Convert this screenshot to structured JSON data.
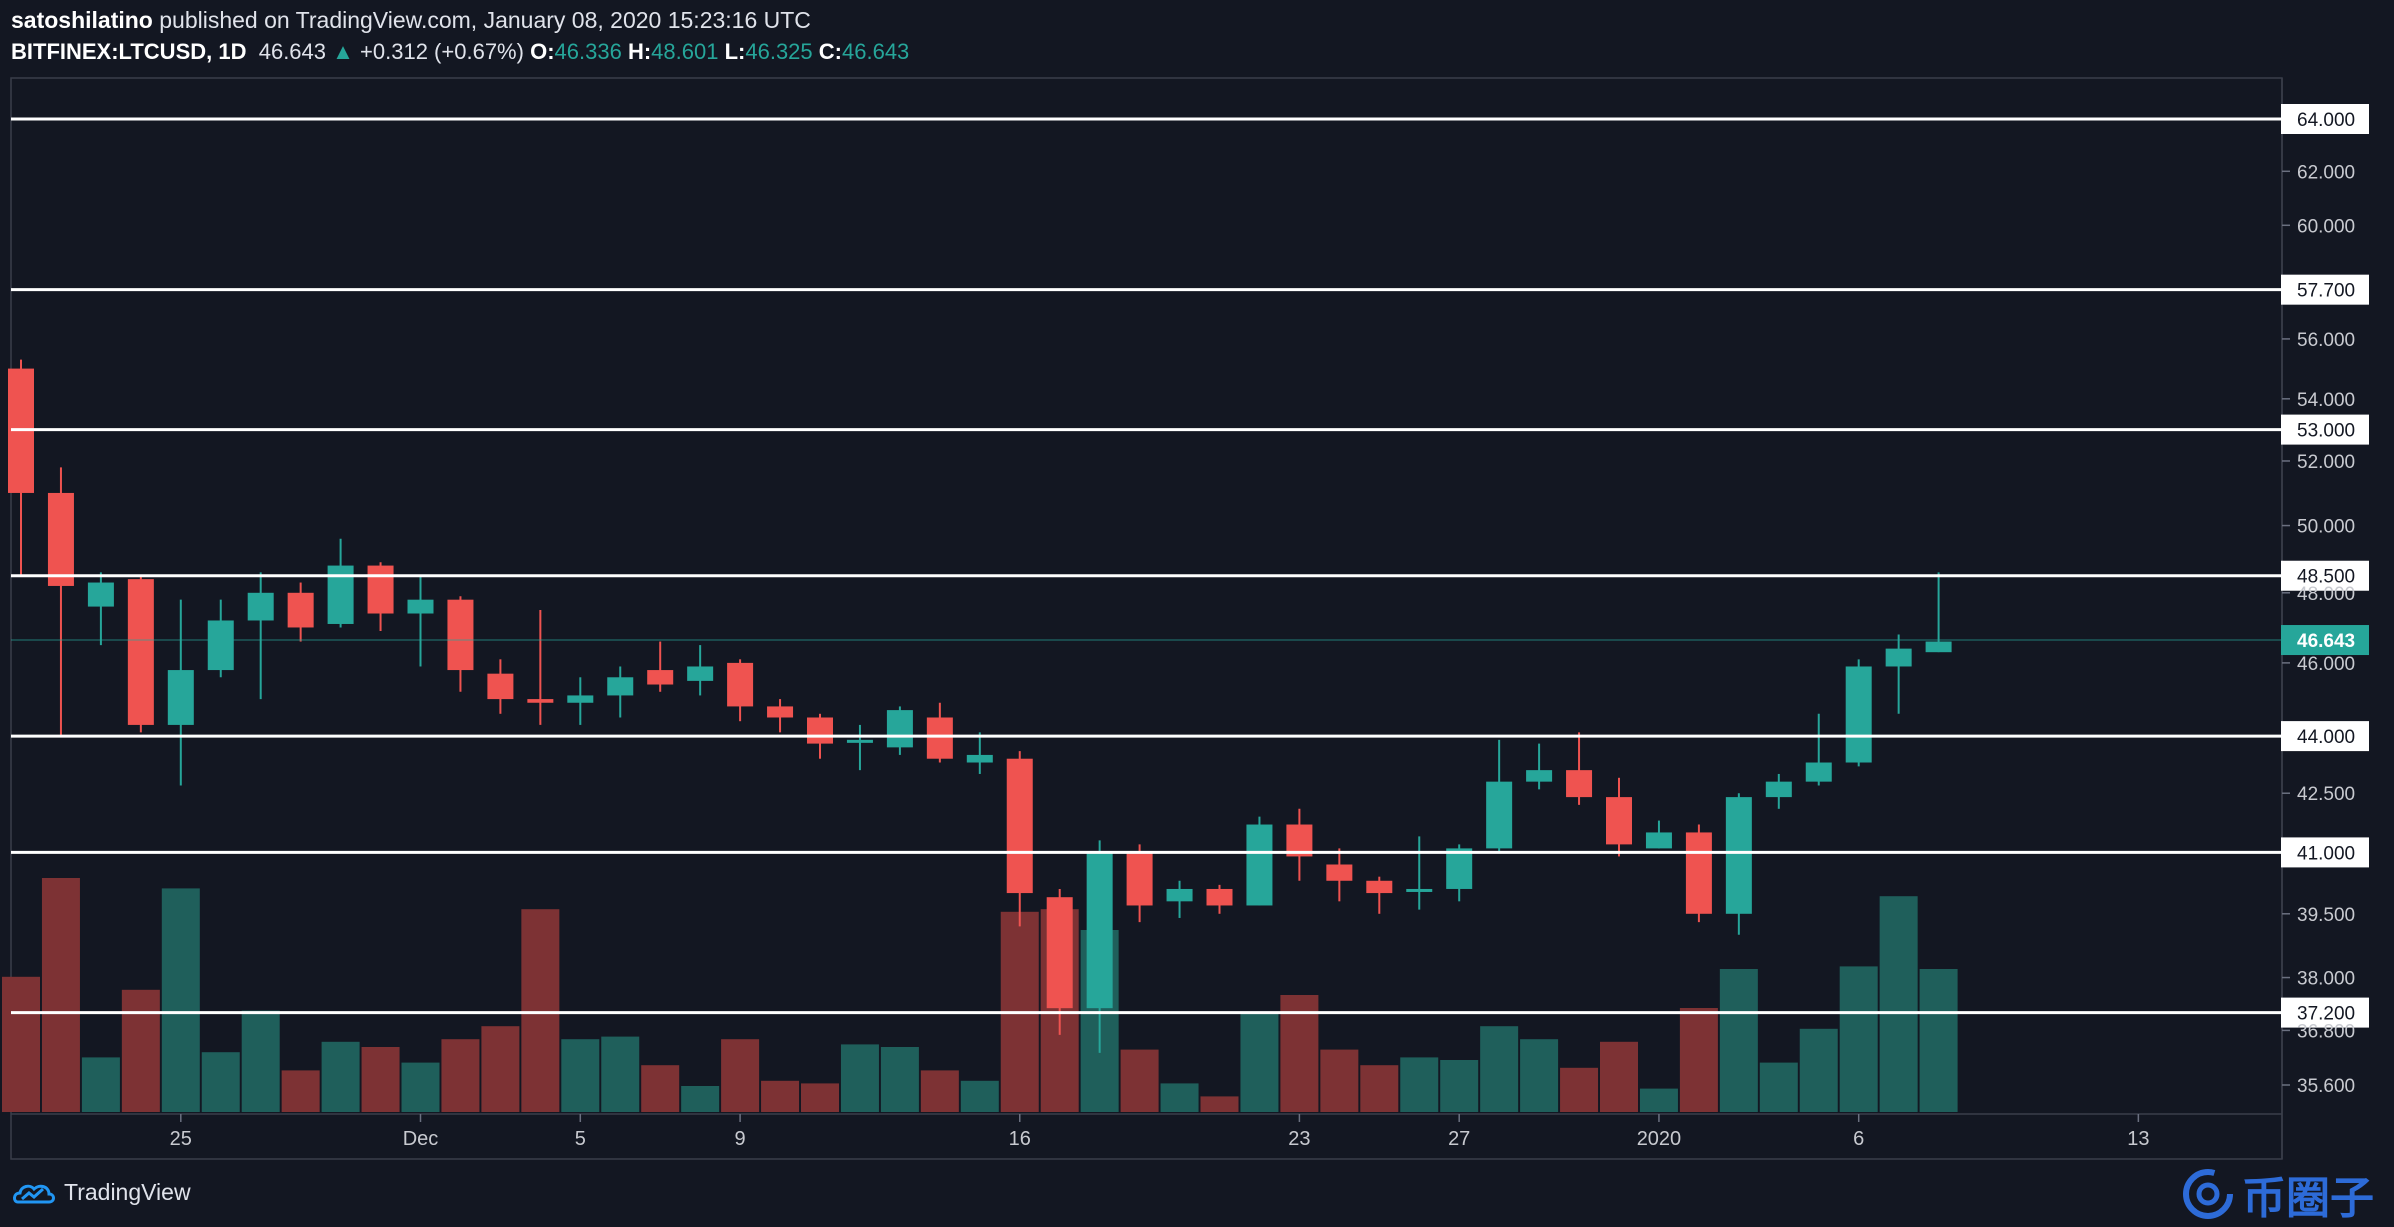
{
  "header": {
    "author": "satoshilatino",
    "published_text": "published on TradingView.com, January 08, 2020 15:23:16 UTC",
    "symbol": "BITFINEX:LTCUSD, 1D",
    "last": "46.643",
    "change_arrow": "▲",
    "change": "+0.312 (+0.67%)",
    "o_label": "O:",
    "o": "46.336",
    "h_label": "H:",
    "h": "48.601",
    "l_label": "L:",
    "l": "46.325",
    "c_label": "C:",
    "c": "46.643"
  },
  "footer": {
    "brand": "TradingView",
    "watermark": "币圈子"
  },
  "colors": {
    "up": "#26a69a",
    "down": "#ef5350",
    "up_vol": "#1f5f5b",
    "down_vol": "#7d3234",
    "bg": "#131722",
    "level": "#ffffff",
    "last_price": "#26a69a"
  },
  "chart_data": {
    "type": "candlestick",
    "y_scale": "log",
    "y_ticks": [
      "64.000",
      "62.000",
      "60.000",
      "57.700",
      "56.000",
      "54.000",
      "53.000",
      "52.000",
      "50.000",
      "48.500",
      "48.000",
      "46.643",
      "46.000",
      "44.000",
      "42.500",
      "41.000",
      "39.500",
      "38.000",
      "37.200",
      "36.800",
      "35.600"
    ],
    "x_tick_labels": [
      {
        "label": "25",
        "day": 4
      },
      {
        "label": "Dec",
        "day": 10
      },
      {
        "label": "5",
        "day": 14
      },
      {
        "label": "9",
        "day": 18
      },
      {
        "label": "16",
        "day": 25
      },
      {
        "label": "23",
        "day": 32
      },
      {
        "label": "27",
        "day": 36
      },
      {
        "label": "2020",
        "day": 41
      },
      {
        "label": "6",
        "day": 46
      },
      {
        "label": "13",
        "day": 53
      }
    ],
    "horizontal_levels": [
      "64.000",
      "57.700",
      "53.000",
      "48.500",
      "44.000",
      "41.000",
      "37.200"
    ],
    "last_price": "46.643",
    "candles": [
      {
        "o": 55.0,
        "h": 55.3,
        "l": 48.5,
        "c": 51.0,
        "v": 0.52
      },
      {
        "o": 51.0,
        "h": 51.8,
        "l": 44.0,
        "c": 48.2,
        "v": 0.9
      },
      {
        "o": 47.6,
        "h": 48.6,
        "l": 46.5,
        "c": 48.3,
        "v": 0.21
      },
      {
        "o": 48.4,
        "h": 48.5,
        "l": 44.1,
        "c": 44.3,
        "v": 0.47
      },
      {
        "o": 44.3,
        "h": 47.8,
        "l": 42.7,
        "c": 45.8,
        "v": 0.86
      },
      {
        "o": 45.8,
        "h": 47.8,
        "l": 45.6,
        "c": 47.2,
        "v": 0.23
      },
      {
        "o": 47.2,
        "h": 48.6,
        "l": 45.0,
        "c": 48.0,
        "v": 0.39
      },
      {
        "o": 48.0,
        "h": 48.3,
        "l": 46.6,
        "c": 47.0,
        "v": 0.16
      },
      {
        "o": 47.1,
        "h": 49.6,
        "l": 47.0,
        "c": 48.8,
        "v": 0.27
      },
      {
        "o": 48.8,
        "h": 48.9,
        "l": 46.9,
        "c": 47.4,
        "v": 0.25
      },
      {
        "o": 47.4,
        "h": 48.5,
        "l": 45.9,
        "c": 47.8,
        "v": 0.19
      },
      {
        "o": 47.8,
        "h": 47.9,
        "l": 45.2,
        "c": 45.8,
        "v": 0.28
      },
      {
        "o": 45.7,
        "h": 46.1,
        "l": 44.6,
        "c": 45.0,
        "v": 0.33
      },
      {
        "o": 45.0,
        "h": 47.5,
        "l": 44.3,
        "c": 44.9,
        "v": 0.78
      },
      {
        "o": 44.9,
        "h": 45.6,
        "l": 44.3,
        "c": 45.1,
        "v": 0.28
      },
      {
        "o": 45.1,
        "h": 45.9,
        "l": 44.5,
        "c": 45.6,
        "v": 0.29
      },
      {
        "o": 45.8,
        "h": 46.6,
        "l": 45.2,
        "c": 45.4,
        "v": 0.18
      },
      {
        "o": 45.5,
        "h": 46.5,
        "l": 45.1,
        "c": 45.9,
        "v": 0.1
      },
      {
        "o": 46.0,
        "h": 46.1,
        "l": 44.4,
        "c": 44.8,
        "v": 0.28
      },
      {
        "o": 44.8,
        "h": 45.0,
        "l": 44.1,
        "c": 44.5,
        "v": 0.12
      },
      {
        "o": 44.5,
        "h": 44.6,
        "l": 43.4,
        "c": 43.8,
        "v": 0.11
      },
      {
        "o": 43.9,
        "h": 44.3,
        "l": 43.1,
        "c": 43.9,
        "v": 0.26
      },
      {
        "o": 43.7,
        "h": 44.8,
        "l": 43.5,
        "c": 44.7,
        "v": 0.25
      },
      {
        "o": 44.5,
        "h": 44.9,
        "l": 43.3,
        "c": 43.4,
        "v": 0.16
      },
      {
        "o": 43.3,
        "h": 44.1,
        "l": 43.0,
        "c": 43.5,
        "v": 0.12
      },
      {
        "o": 43.4,
        "h": 43.6,
        "l": 39.2,
        "c": 40.0,
        "v": 0.77
      },
      {
        "o": 39.9,
        "h": 40.1,
        "l": 36.7,
        "c": 37.3,
        "v": 0.78
      },
      {
        "o": 37.3,
        "h": 41.3,
        "l": 36.3,
        "c": 41.0,
        "v": 0.7
      },
      {
        "o": 41.0,
        "h": 41.2,
        "l": 39.3,
        "c": 39.7,
        "v": 0.24
      },
      {
        "o": 39.8,
        "h": 40.3,
        "l": 39.4,
        "c": 40.1,
        "v": 0.11
      },
      {
        "o": 40.1,
        "h": 40.2,
        "l": 39.5,
        "c": 39.7,
        "v": 0.06
      },
      {
        "o": 39.7,
        "h": 41.9,
        "l": 39.7,
        "c": 41.7,
        "v": 0.38
      },
      {
        "o": 41.7,
        "h": 42.1,
        "l": 40.3,
        "c": 40.9,
        "v": 0.45
      },
      {
        "o": 40.7,
        "h": 41.1,
        "l": 39.8,
        "c": 40.3,
        "v": 0.24
      },
      {
        "o": 40.3,
        "h": 40.4,
        "l": 39.5,
        "c": 40.0,
        "v": 0.18
      },
      {
        "o": 40.1,
        "h": 41.4,
        "l": 39.6,
        "c": 40.1,
        "v": 0.21
      },
      {
        "o": 40.1,
        "h": 41.2,
        "l": 39.8,
        "c": 41.1,
        "v": 0.2
      },
      {
        "o": 41.1,
        "h": 43.9,
        "l": 41.0,
        "c": 42.8,
        "v": 0.33
      },
      {
        "o": 42.8,
        "h": 43.8,
        "l": 42.6,
        "c": 43.1,
        "v": 0.28
      },
      {
        "o": 43.1,
        "h": 44.1,
        "l": 42.2,
        "c": 42.4,
        "v": 0.17
      },
      {
        "o": 42.4,
        "h": 42.9,
        "l": 40.9,
        "c": 41.2,
        "v": 0.27
      },
      {
        "o": 41.1,
        "h": 41.8,
        "l": 41.1,
        "c": 41.5,
        "v": 0.09
      },
      {
        "o": 41.5,
        "h": 41.7,
        "l": 39.3,
        "c": 39.5,
        "v": 0.4
      },
      {
        "o": 39.5,
        "h": 42.5,
        "l": 39.0,
        "c": 42.4,
        "v": 0.55
      },
      {
        "o": 42.4,
        "h": 43.0,
        "l": 42.1,
        "c": 42.8,
        "v": 0.19
      },
      {
        "o": 42.8,
        "h": 44.6,
        "l": 42.7,
        "c": 43.3,
        "v": 0.32
      },
      {
        "o": 43.3,
        "h": 46.1,
        "l": 43.2,
        "c": 45.9,
        "v": 0.56
      },
      {
        "o": 45.9,
        "h": 46.8,
        "l": 44.6,
        "c": 46.4,
        "v": 0.83
      },
      {
        "o": 46.3,
        "h": 48.6,
        "l": 46.3,
        "c": 46.6,
        "v": 0.55
      }
    ]
  }
}
